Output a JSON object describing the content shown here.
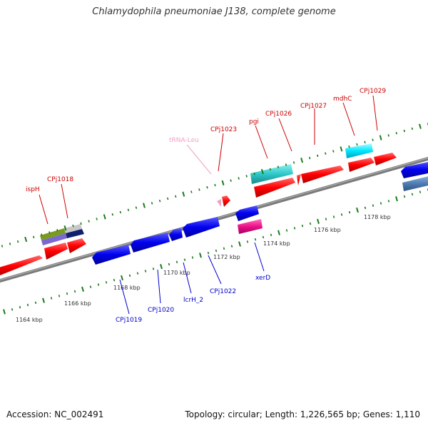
{
  "title": "Chlamydophila pneumoniae J138, complete genome",
  "footer": {
    "accession": "Accession: NC_002491",
    "stats": "Topology: circular; Length: 1,226,565 bp; Genes: 1,110"
  },
  "colors": {
    "red": "#ff0000",
    "blue": "#0000ee",
    "cyan": "#2ec8c8",
    "pink": "#ee1188",
    "steel": "#4f7fb5",
    "olive": "#7a9a20",
    "violet": "#7b68d0",
    "navy": "#101f6e",
    "trna": "#f0a0c8",
    "tick": "#1a7a1a"
  },
  "scale_labels": [
    "1164 kbp",
    "1166 kbp",
    "1168 kbp",
    "1170 kbp",
    "1172 kbp",
    "1174 kbp",
    "1176 kbp",
    "1178 kbp"
  ],
  "features": [
    {
      "label": "ispH",
      "strand": "forward",
      "color": "red"
    },
    {
      "label": "CPj1018",
      "strand": "forward",
      "color": "red"
    },
    {
      "label": "tRNA-Leu",
      "strand": "forward",
      "color": "trna"
    },
    {
      "label": "CPj1023",
      "strand": "forward",
      "color": "red"
    },
    {
      "label": "pgi",
      "strand": "forward",
      "color": "red"
    },
    {
      "label": "CPj1026",
      "strand": "forward",
      "color": "red"
    },
    {
      "label": "CPj1027",
      "strand": "forward",
      "color": "red"
    },
    {
      "label": "mdhC",
      "strand": "forward",
      "color": "red"
    },
    {
      "label": "CPj1029",
      "strand": "forward",
      "color": "red"
    },
    {
      "label": "CPj1019",
      "strand": "reverse",
      "color": "blue"
    },
    {
      "label": "CPj1020",
      "strand": "reverse",
      "color": "blue"
    },
    {
      "label": "lcrH_2",
      "strand": "reverse",
      "color": "blue"
    },
    {
      "label": "CPj1022",
      "strand": "reverse",
      "color": "blue"
    },
    {
      "label": "xerD",
      "strand": "reverse",
      "color": "blue"
    }
  ]
}
